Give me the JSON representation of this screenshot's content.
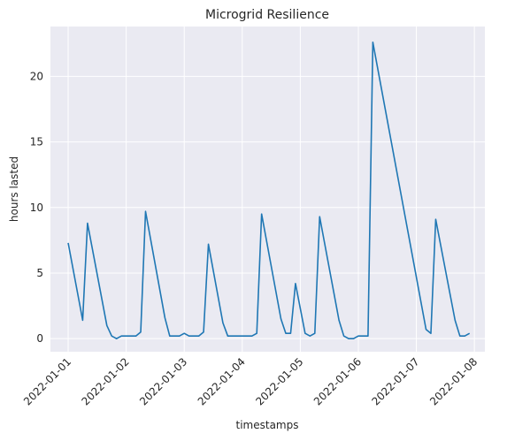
{
  "chart_data": {
    "type": "line",
    "title": "Microgrid Resilience",
    "x_label": "timestamps",
    "y_label": "hours lasted",
    "x": [
      "2022-01-01 00:00",
      "2022-01-01 06:00",
      "2022-01-01 08:00",
      "2022-01-01 16:00",
      "2022-01-01 18:00",
      "2022-01-01 20:00",
      "2022-01-01 22:00",
      "2022-01-02 04:00",
      "2022-01-02 06:00",
      "2022-01-02 08:00",
      "2022-01-02 16:00",
      "2022-01-02 18:00",
      "2022-01-02 22:00",
      "2022-01-03 00:00",
      "2022-01-03 02:00",
      "2022-01-03 06:00",
      "2022-01-03 08:00",
      "2022-01-03 10:00",
      "2022-01-03 16:00",
      "2022-01-03 18:00",
      "2022-01-04 04:00",
      "2022-01-04 06:00",
      "2022-01-04 08:00",
      "2022-01-04 16:00",
      "2022-01-04 18:00",
      "2022-01-04 20:00",
      "2022-01-04 22:00",
      "2022-01-05 02:00",
      "2022-01-05 04:00",
      "2022-01-05 06:00",
      "2022-01-05 08:00",
      "2022-01-05 16:00",
      "2022-01-05 18:00",
      "2022-01-05 20:00",
      "2022-01-05 22:00",
      "2022-01-06 00:00",
      "2022-01-06 04:00",
      "2022-01-06 06:00",
      "2022-01-07 04:00",
      "2022-01-07 06:00",
      "2022-01-07 08:00",
      "2022-01-07 16:00",
      "2022-01-07 18:00",
      "2022-01-07 20:00",
      "2022-01-07 22:00"
    ],
    "series": [
      {
        "name": "hours lasted",
        "color": "#1f77b4",
        "values": [
          7.3,
          1.4,
          8.8,
          1.0,
          0.2,
          0.0,
          0.2,
          0.2,
          0.5,
          9.7,
          1.6,
          0.2,
          0.2,
          0.4,
          0.2,
          0.2,
          0.5,
          7.2,
          1.2,
          0.2,
          0.2,
          0.4,
          9.5,
          1.5,
          0.4,
          0.4,
          4.2,
          0.4,
          0.2,
          0.4,
          9.3,
          1.4,
          0.2,
          0.0,
          0.0,
          0.2,
          0.2,
          22.6,
          0.7,
          0.4,
          9.1,
          1.4,
          0.2,
          0.2,
          0.4
        ]
      }
    ],
    "xlim": [
      "2021-12-31 16:40",
      "2022-01-08 04:20"
    ],
    "xticks": [
      "2022-01-01",
      "2022-01-02",
      "2022-01-03",
      "2022-01-04",
      "2022-01-05",
      "2022-01-06",
      "2022-01-07",
      "2022-01-08"
    ],
    "ylim": [
      -1.0,
      23.8
    ],
    "yticks": [
      0,
      5,
      10,
      15,
      20
    ],
    "grid": true
  }
}
